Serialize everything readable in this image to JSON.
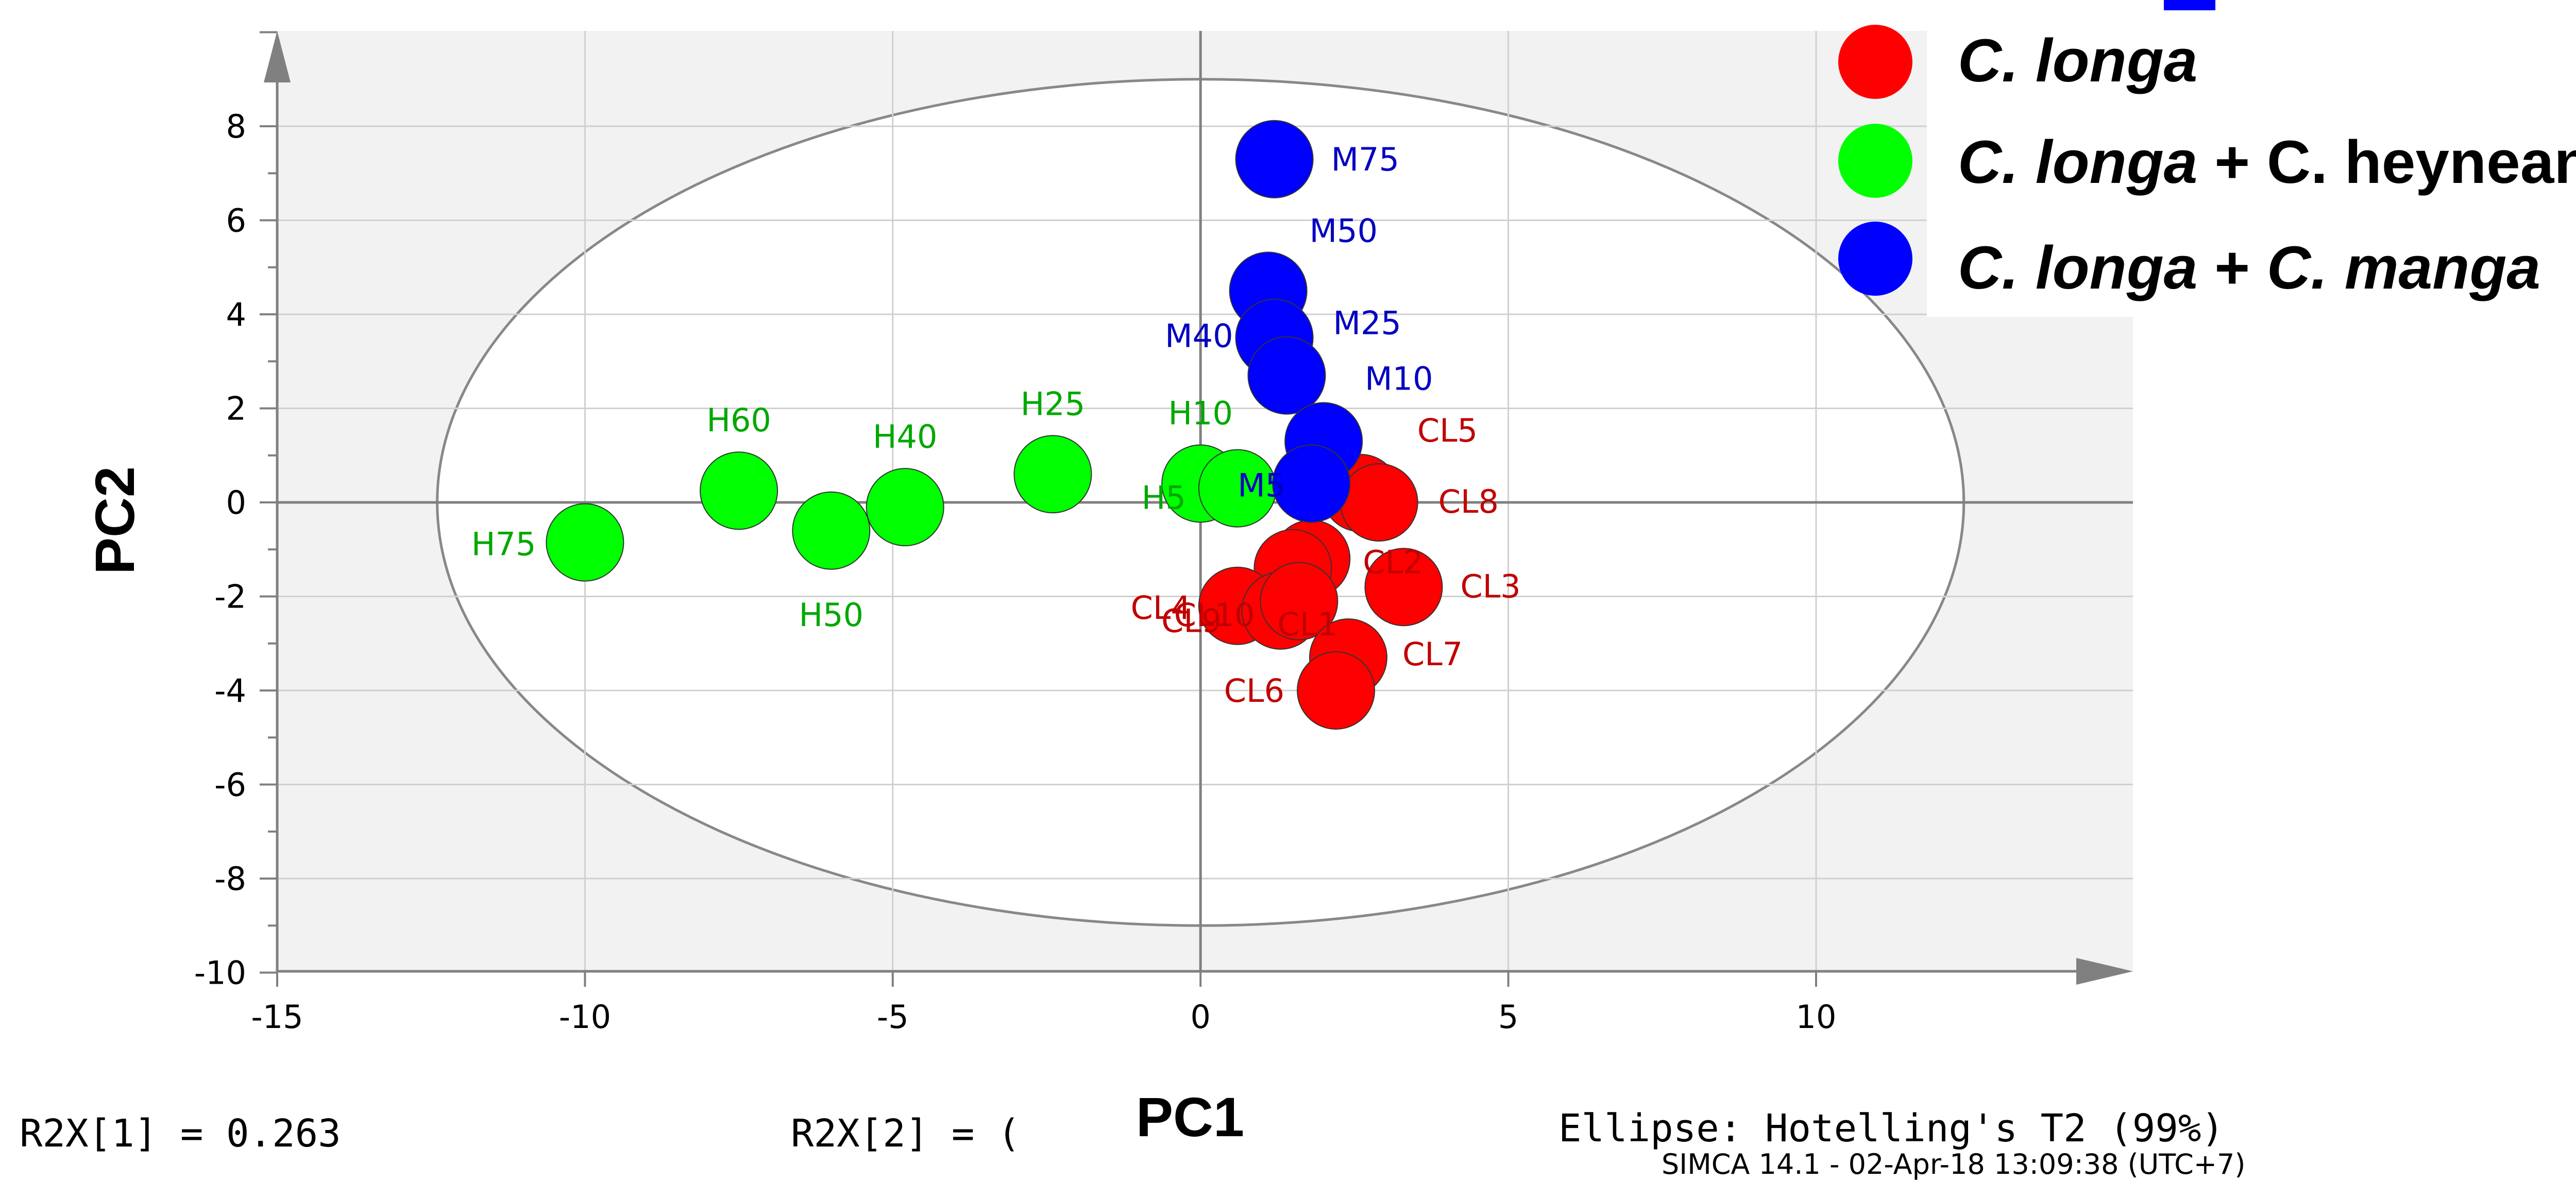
{
  "chart_data": {
    "type": "scatter",
    "xlabel": "PC1",
    "ylabel": "PC2",
    "xlim": [
      -15,
      15
    ],
    "ylim": [
      -10,
      10
    ],
    "x_ticks": [
      -15,
      -10,
      -5,
      0,
      5,
      10
    ],
    "y_ticks": [
      8,
      6,
      4,
      2,
      0,
      -2,
      -4,
      -6,
      -8,
      -10
    ],
    "y_tick_labels": [
      "8",
      "6",
      "4",
      "2",
      "0",
      "-2",
      "-4",
      "-6",
      "-8",
      "-10"
    ],
    "ellipse": {
      "center": [
        0,
        0
      ],
      "semi_axis_x": 12.4,
      "semi_axis_y": 9.0
    },
    "colors": {
      "C. longa": "#ff0000",
      "C. longa + C. heyneana": "#00ff00",
      "C. longa + C. manga": "#0000ff",
      "C. longa_label": "#c00000",
      "C. longa + C. heyneana_label": "#00a800",
      "C. longa + C. manga_label": "#0000c0"
    },
    "series": [
      {
        "name": "C. longa",
        "points": [
          {
            "label": "CL5",
            "x": 2.6,
            "y": 0.2
          },
          {
            "label": "CL8",
            "x": 2.9,
            "y": 0.0
          },
          {
            "label": "CL2",
            "x": 1.8,
            "y": -1.2
          },
          {
            "label": "CL1",
            "x": 1.5,
            "y": -1.4
          },
          {
            "label": "CL3",
            "x": 3.3,
            "y": -1.8
          },
          {
            "label": "CL4",
            "x": 0.6,
            "y": -2.2
          },
          {
            "label": "CL10",
            "x": 1.3,
            "y": -2.3
          },
          {
            "label": "CL9",
            "x": 1.6,
            "y": -2.1
          },
          {
            "label": "CL7",
            "x": 2.4,
            "y": -3.3
          },
          {
            "label": "CL6",
            "x": 2.2,
            "y": -4.0
          }
        ]
      },
      {
        "name": "C. longa + C. heyneana",
        "points": [
          {
            "label": "H75",
            "x": -10.0,
            "y": -0.85
          },
          {
            "label": "H60",
            "x": -7.5,
            "y": 0.25
          },
          {
            "label": "H50",
            "x": -6.0,
            "y": -0.6
          },
          {
            "label": "H40",
            "x": -4.8,
            "y": -0.1
          },
          {
            "label": "H25",
            "x": -2.4,
            "y": 0.6
          },
          {
            "label": "H10",
            "x": 0.0,
            "y": 0.4
          },
          {
            "label": "H5",
            "x": 0.6,
            "y": 0.3
          }
        ]
      },
      {
        "name": "C. longa + C. manga",
        "points": [
          {
            "label": "M75",
            "x": 1.2,
            "y": 7.3
          },
          {
            "label": "M50",
            "x": 1.1,
            "y": 4.5
          },
          {
            "label": "M40",
            "x": 1.2,
            "y": 3.5
          },
          {
            "label": "M25",
            "x": 1.4,
            "y": 2.7
          },
          {
            "label": "M10",
            "x": 2.0,
            "y": 1.3
          },
          {
            "label": "M5",
            "x": 1.8,
            "y": 0.4
          }
        ]
      }
    ],
    "footer": {
      "r2x1": "R2X[1] = 0.263",
      "r2x2": "R2X[2] = (",
      "ellipse_note": "Ellipse: Hotelling's T2 (99%)",
      "software": "SIMCA 14.1 - 02-Apr-18 13:09:38 (UTC+7)"
    }
  },
  "legend": {
    "c_longa": {
      "italic": "C. longa"
    },
    "heyneana": {
      "italic": "C. longa",
      "rest": " + C. heyneana"
    },
    "manga": {
      "italic1": "C. longa",
      "plus": " + ",
      "italic2": "C. manga"
    }
  }
}
